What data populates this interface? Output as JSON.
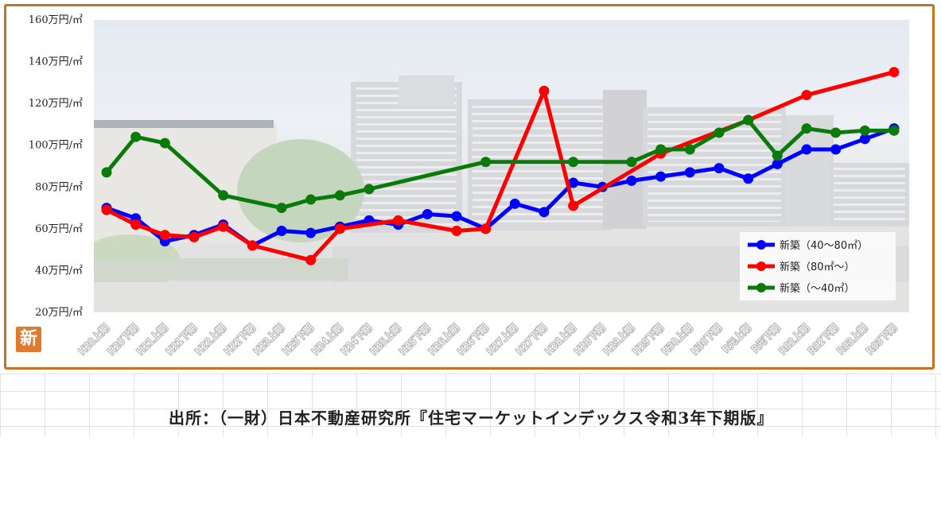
{
  "badge": "新",
  "source": "出所：（一財）日本不動産研究所『住宅マーケットインデックス令和3年下期版』",
  "chart_data": {
    "type": "line",
    "categories": [
      "H20上期",
      "H20下期",
      "H21上期",
      "H21下期",
      "H22上期",
      "H22下期",
      "H23上期",
      "H23下期",
      "H24上期",
      "H24下期",
      "H25上期",
      "H25下期",
      "H26上期",
      "H26下期",
      "H27上期",
      "H27下期",
      "H28上期",
      "H28下期",
      "H29上期",
      "H29下期",
      "H30上期",
      "H30下期",
      "R元上期",
      "R元下期",
      "R02上期",
      "R02下期",
      "R03上期",
      "R03下期"
    ],
    "y_ticks": [
      "20万円/㎡",
      "40万円/㎡",
      "60万円/㎡",
      "80万円/㎡",
      "100万円/㎡",
      "120万円/㎡",
      "140万円/㎡",
      "160万円/㎡"
    ],
    "ylim": [
      20,
      160
    ],
    "legend_position": "bottom-right",
    "series": [
      {
        "name": "新築（40～80㎡）",
        "color": "#0000ff",
        "values": [
          70,
          65,
          54,
          57,
          62,
          52,
          59,
          58,
          61,
          64,
          62,
          67,
          66,
          60,
          72,
          68,
          82,
          80,
          83,
          85,
          87,
          89,
          84,
          91,
          98,
          98,
          103,
          108
        ]
      },
      {
        "name": "新築（80㎡～）",
        "color": "#ff0000",
        "values": [
          69,
          62,
          57,
          56,
          61,
          52,
          null,
          45,
          60,
          null,
          64,
          null,
          59,
          60,
          null,
          126,
          71,
          null,
          null,
          96,
          null,
          null,
          112,
          null,
          124,
          null,
          null,
          135
        ]
      },
      {
        "name": "新築（～40㎡）",
        "color": "#0a7a0a",
        "values": [
          87,
          104,
          101,
          null,
          76,
          null,
          70,
          74,
          76,
          79,
          null,
          null,
          null,
          92,
          null,
          null,
          92,
          null,
          92,
          98,
          98,
          106,
          112,
          95,
          108,
          106,
          107,
          107
        ]
      }
    ]
  }
}
